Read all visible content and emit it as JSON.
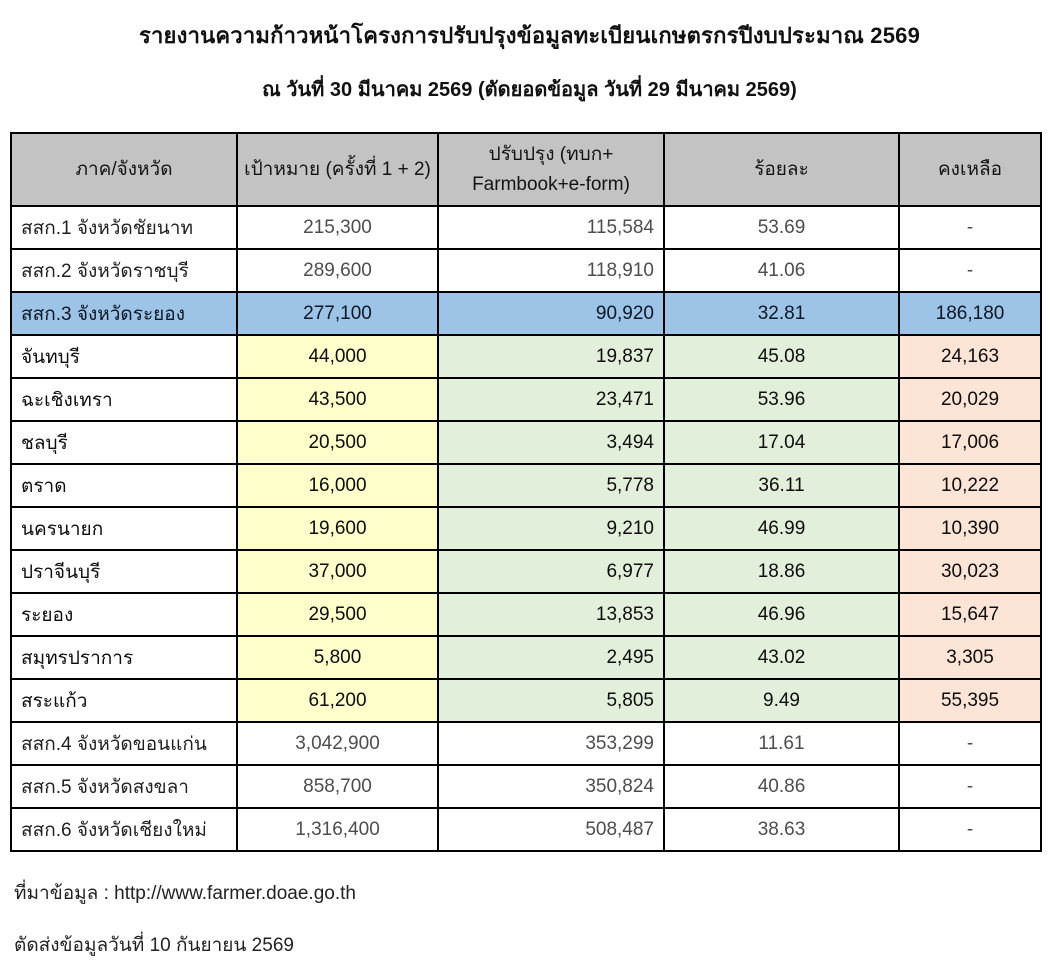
{
  "title": "รายงานความก้าวหน้าโครงการปรับปรุงข้อมูลทะเบียนเกษตรกรปีงบประมาณ 2569",
  "subtitle": "ณ วันที่ 30 มีนาคม 2569 (ตัดยอดข้อมูล วันที่ 29 มีนาคม 2569)",
  "table": {
    "header": {
      "region": "ภาค/จังหวัด",
      "target": "เป้าหมาย (ครั้งที่ 1 + 2)",
      "updated_line1": "ปรับปรุง (ทบก+",
      "updated_line2": "Farmbook+e-form)",
      "percent": "ร้อยละ",
      "remaining": "คงเหลือ"
    },
    "rows": [
      {
        "type": "region",
        "name": "สสก.1 จังหวัดชัยนาท",
        "target": "215,300",
        "updated": "115,584",
        "percent": "53.69",
        "remaining": "-"
      },
      {
        "type": "region",
        "name": "สสก.2 จังหวัดราชบุรี",
        "target": "289,600",
        "updated": "118,910",
        "percent": "41.06",
        "remaining": "-"
      },
      {
        "type": "highlight",
        "name": "สสก.3 จังหวัดระยอง",
        "target": "277,100",
        "updated": "90,920",
        "percent": "32.81",
        "remaining": "186,180"
      },
      {
        "type": "province",
        "name": "จันทบุรี",
        "target": "44,000",
        "updated": "19,837",
        "percent": "45.08",
        "remaining": "24,163"
      },
      {
        "type": "province",
        "name": "ฉะเชิงเทรา",
        "target": "43,500",
        "updated": "23,471",
        "percent": "53.96",
        "remaining": "20,029"
      },
      {
        "type": "province",
        "name": "ชลบุรี",
        "target": "20,500",
        "updated": "3,494",
        "percent": "17.04",
        "remaining": "17,006"
      },
      {
        "type": "province",
        "name": "ตราด",
        "target": "16,000",
        "updated": "5,778",
        "percent": "36.11",
        "remaining": "10,222"
      },
      {
        "type": "province",
        "name": "นครนายก",
        "target": "19,600",
        "updated": "9,210",
        "percent": "46.99",
        "remaining": "10,390"
      },
      {
        "type": "province",
        "name": "ปราจีนบุรี",
        "target": "37,000",
        "updated": "6,977",
        "percent": "18.86",
        "remaining": "30,023"
      },
      {
        "type": "province",
        "name": "ระยอง",
        "target": "29,500",
        "updated": "13,853",
        "percent": "46.96",
        "remaining": "15,647"
      },
      {
        "type": "province",
        "name": "สมุทรปราการ",
        "target": "5,800",
        "updated": "2,495",
        "percent": "43.02",
        "remaining": "3,305"
      },
      {
        "type": "province",
        "name": "สระแก้ว",
        "target": "61,200",
        "updated": "5,805",
        "percent": "9.49",
        "remaining": "55,395"
      },
      {
        "type": "region",
        "name": "สสก.4 จังหวัดขอนแก่น",
        "target": "3,042,900",
        "updated": "353,299",
        "percent": "11.61",
        "remaining": "-"
      },
      {
        "type": "region",
        "name": "สสก.5 จังหวัดสงขลา",
        "target": "858,700",
        "updated": "350,824",
        "percent": "40.86",
        "remaining": "-"
      },
      {
        "type": "region",
        "name": "สสก.6 จังหวัดเชียงใหม่",
        "target": "1,316,400",
        "updated": "508,487",
        "percent": "38.63",
        "remaining": "-"
      }
    ]
  },
  "footer": {
    "source": "ที่มาข้อมูล : http://www.farmer.doae.go.th",
    "deadline": "ตัดส่งข้อมูลวันที่ 10 กันยายน 2569"
  },
  "colors": {
    "header_bg": "#c3c3c3",
    "highlight_blue": "#9dc3e6",
    "target_yellow": "#ffffcc",
    "updated_green": "#e2efda",
    "remaining_pink": "#fce4d6",
    "border": "#000000"
  }
}
